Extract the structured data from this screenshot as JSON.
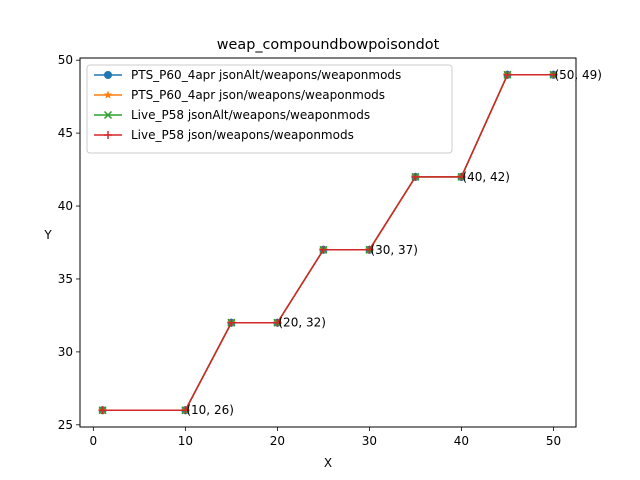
{
  "chart_data": {
    "type": "line",
    "title": "weap_compoundbowpoisondot",
    "xlabel": "X",
    "ylabel": "Y",
    "xlim": [
      -1.45,
      52.45
    ],
    "ylim": [
      24.85,
      50.15
    ],
    "xticks": [
      0,
      10,
      20,
      30,
      40,
      50
    ],
    "yticks": [
      25,
      30,
      35,
      40,
      45,
      50
    ],
    "grid": false,
    "legend_position": "top-left",
    "x": [
      1,
      10,
      15,
      20,
      25,
      30,
      35,
      40,
      45,
      50
    ],
    "series": [
      {
        "name": "PTS_P60_4apr jsonAlt/weapons/weaponmods",
        "color": "#1f77b4",
        "marker": "circle",
        "values": [
          26,
          26,
          32,
          32,
          37,
          37,
          42,
          42,
          49,
          49
        ]
      },
      {
        "name": "PTS_P60_4apr json/weapons/weaponmods",
        "color": "#ff7f0e",
        "marker": "star",
        "values": [
          26,
          26,
          32,
          32,
          37,
          37,
          42,
          42,
          49,
          49
        ]
      },
      {
        "name": "Live_P58 jsonAlt/weapons/weaponmods",
        "color": "#2ca02c",
        "marker": "x",
        "values": [
          26,
          26,
          32,
          32,
          37,
          37,
          42,
          42,
          49,
          49
        ]
      },
      {
        "name": "Live_P58 json/weapons/weaponmods",
        "color": "#d62728",
        "marker": "plus",
        "values": [
          26,
          26,
          32,
          32,
          37,
          37,
          42,
          42,
          49,
          49
        ]
      }
    ],
    "annotations": [
      {
        "text": "(10, 26)",
        "x": 10,
        "y": 26
      },
      {
        "text": "(20, 32)",
        "x": 20,
        "y": 32
      },
      {
        "text": "(30, 37)",
        "x": 30,
        "y": 37
      },
      {
        "text": "(40, 42)",
        "x": 40,
        "y": 42
      },
      {
        "text": "(50, 49)",
        "x": 50,
        "y": 49
      }
    ]
  }
}
